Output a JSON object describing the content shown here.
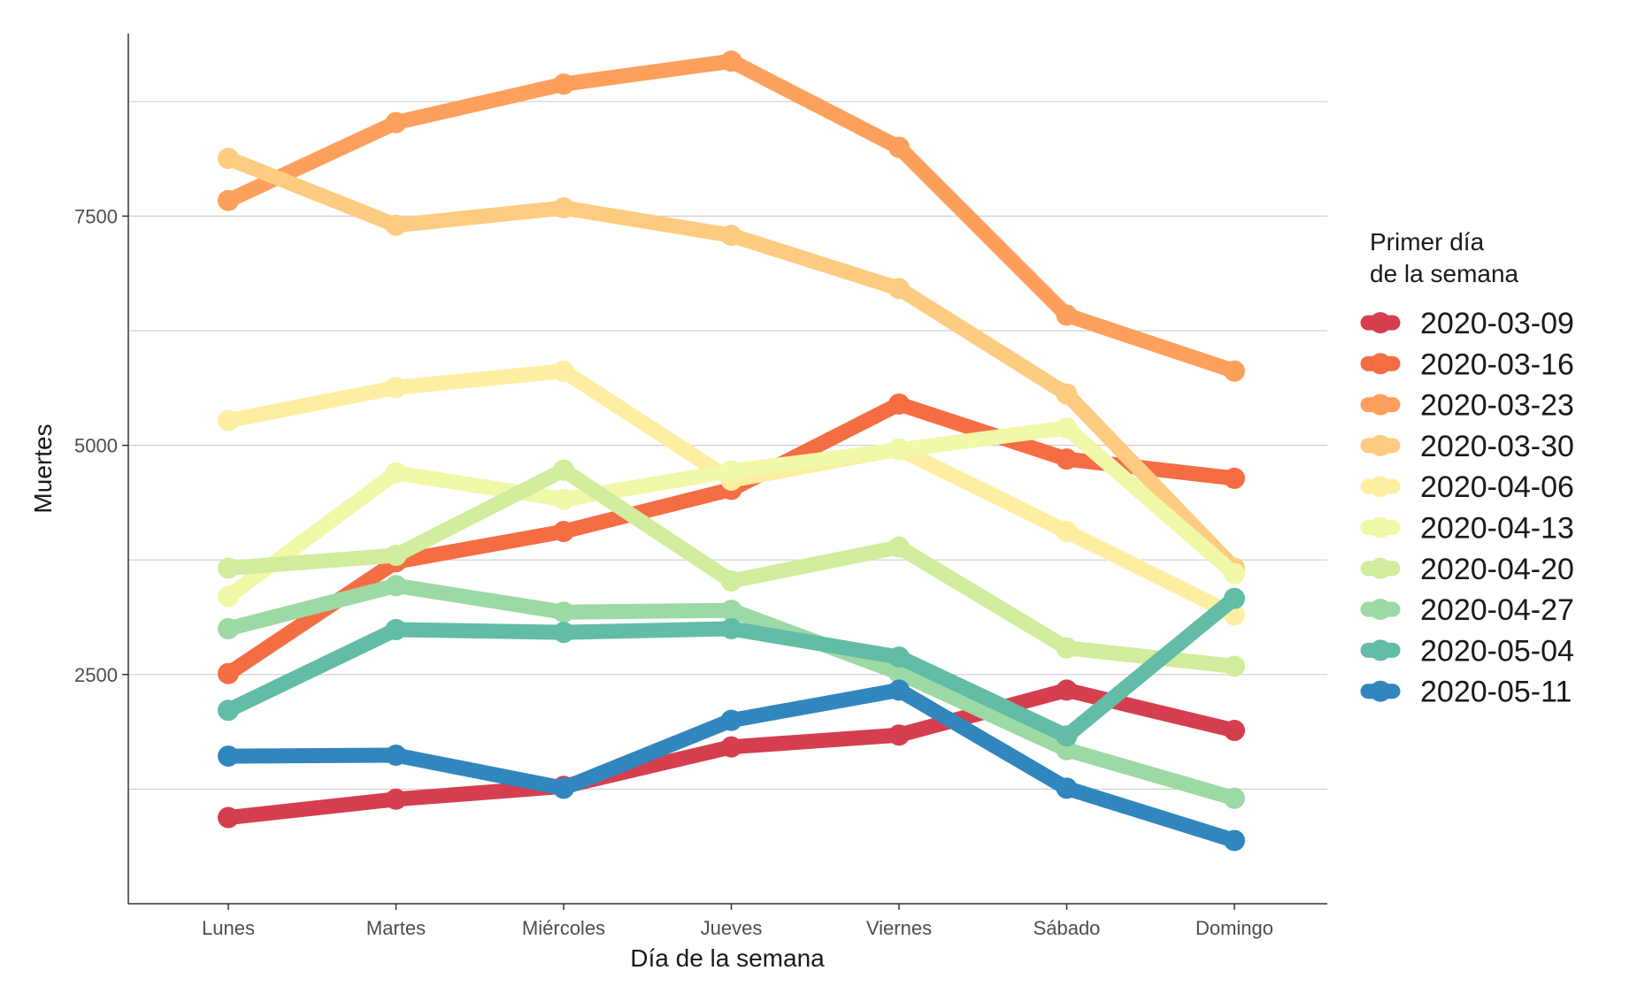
{
  "chart_data": {
    "type": "line",
    "xlabel": "Día de la semana",
    "ylabel": "Muertes",
    "categories": [
      "Lunes",
      "Martes",
      "Miércoles",
      "Jueves",
      "Viernes",
      "Sábado",
      "Domingo"
    ],
    "yticks": [
      2500,
      5000,
      7500
    ],
    "ylim": [
      0,
      9600
    ],
    "grid": "horizontal major and minor",
    "legend": {
      "position": "right",
      "title_lines": [
        "Primer día",
        "de la semana"
      ]
    },
    "series": [
      {
        "name": "2020-03-09",
        "color": "#D53E4F",
        "values": [
          940,
          1140,
          1280,
          1710,
          1840,
          2330,
          1890
        ]
      },
      {
        "name": "2020-03-16",
        "color": "#F46D43",
        "values": [
          2510,
          3730,
          4060,
          4520,
          5450,
          4850,
          4640
        ]
      },
      {
        "name": "2020-03-23",
        "color": "#FDA05C",
        "values": [
          7670,
          8520,
          8940,
          9190,
          8250,
          6420,
          5810
        ]
      },
      {
        "name": "2020-03-30",
        "color": "#FECC80",
        "values": [
          8130,
          7400,
          7590,
          7290,
          6710,
          5560,
          3660
        ]
      },
      {
        "name": "2020-04-06",
        "color": "#FEEEA2",
        "values": [
          5270,
          5630,
          5810,
          4620,
          4960,
          4060,
          3150
        ]
      },
      {
        "name": "2020-04-13",
        "color": "#F1F8A8",
        "values": [
          3350,
          4700,
          4410,
          4720,
          4950,
          5190,
          3600
        ]
      },
      {
        "name": "2020-04-20",
        "color": "#D1EC9C",
        "values": [
          3660,
          3800,
          4730,
          3520,
          3890,
          2790,
          2590
        ]
      },
      {
        "name": "2020-04-27",
        "color": "#9CD9A4",
        "values": [
          3000,
          3470,
          3180,
          3200,
          2520,
          1680,
          1150
        ]
      },
      {
        "name": "2020-05-04",
        "color": "#63BCA5",
        "values": [
          2110,
          2990,
          2960,
          3000,
          2690,
          1830,
          3330
        ]
      },
      {
        "name": "2020-05-11",
        "color": "#3186BE",
        "values": [
          1610,
          1620,
          1260,
          2000,
          2330,
          1260,
          690
        ]
      }
    ]
  }
}
